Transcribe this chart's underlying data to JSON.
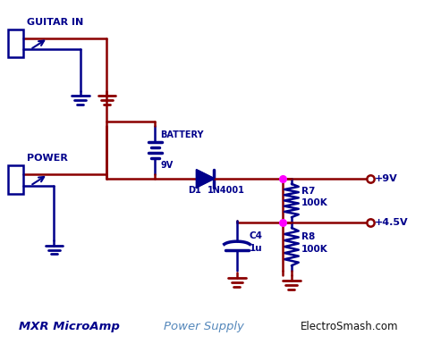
{
  "background_color": "#ffffff",
  "wire_color_red": "#8B0000",
  "wire_color_blue": "#00008B",
  "node_color": "#FF00FF",
  "label_color_blue": "#0000CD",
  "label_color_black": "#000000",
  "bottom_text_left": "MXR MicroAmp",
  "bottom_text_mid": "Power Supply",
  "bottom_text_right": "ElectroSmash.com",
  "guitar_in_label": "GUITAR IN",
  "power_label": "POWER",
  "battery_label": "BATTERY",
  "battery_voltage": "9V",
  "diode_label": "D1",
  "diode_part": "1N4001",
  "r7_label": "R7",
  "r7_value": "100K",
  "r8_label": "R8",
  "r8_value": "100K",
  "c4_label": "C4",
  "c4_value": "1u",
  "plus9v_label": "+9V",
  "plus45v_label": "+4.5V"
}
